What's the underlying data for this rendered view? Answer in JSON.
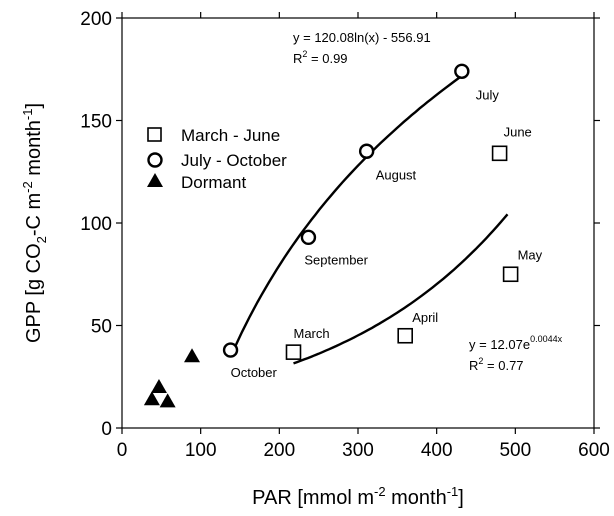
{
  "chart_data": {
    "type": "scatter",
    "xlabel": "PAR [mmol m",
    "xlabel_sup": "-2",
    "xlabel_mid": " month",
    "xlabel_sup2": "-1",
    "xlabel_end": "]",
    "ylabel": "GPP [g CO",
    "ylabel_sub": "2",
    "ylabel_mid": "-C m",
    "ylabel_sup": "-2",
    "ylabel_mid2": " month",
    "ylabel_sup2": "-1",
    "ylabel_end": "]",
    "xlim": [
      0,
      600
    ],
    "ylim": [
      0,
      200
    ],
    "xticks": [
      "0",
      "100",
      "200",
      "300",
      "400",
      "500",
      "600"
    ],
    "yticks": [
      "0",
      "50",
      "100",
      "150",
      "200"
    ],
    "grid": false,
    "legend_position": "left",
    "series": [
      {
        "name": "March - June",
        "marker": "square",
        "points": [
          {
            "x": 218,
            "y": 37,
            "label": "March"
          },
          {
            "x": 360,
            "y": 45,
            "label": "April"
          },
          {
            "x": 494,
            "y": 75,
            "label": "May"
          },
          {
            "x": 480,
            "y": 134,
            "label": "June"
          }
        ]
      },
      {
        "name": "July - October",
        "marker": "circle",
        "points": [
          {
            "x": 138,
            "y": 38,
            "label": "October"
          },
          {
            "x": 237,
            "y": 93,
            "label": "September"
          },
          {
            "x": 311,
            "y": 135,
            "label": "August"
          },
          {
            "x": 432,
            "y": 174,
            "label": "July"
          }
        ]
      },
      {
        "name": "Dormant",
        "marker": "triangle",
        "points": [
          {
            "x": 38,
            "y": 14
          },
          {
            "x": 47,
            "y": 20
          },
          {
            "x": 58,
            "y": 13
          },
          {
            "x": 89,
            "y": 35
          }
        ]
      }
    ],
    "fits": [
      {
        "kind": "log",
        "a": 120.08,
        "b": -556.91,
        "x_range": [
          138,
          432
        ],
        "equation": "y = 120.08ln(x) - 556.91",
        "r2_prefix": "R",
        "r2_sup": "2",
        "r2_value": " = 0.99"
      },
      {
        "kind": "exp",
        "a": 12.07,
        "k": 0.0044,
        "x_range": [
          218,
          490
        ],
        "equation_base": "y = 12.07e",
        "equation_exp": "0.0044x",
        "r2_prefix": "R",
        "r2_sup": "2",
        "r2_value": " = 0.77"
      }
    ]
  }
}
